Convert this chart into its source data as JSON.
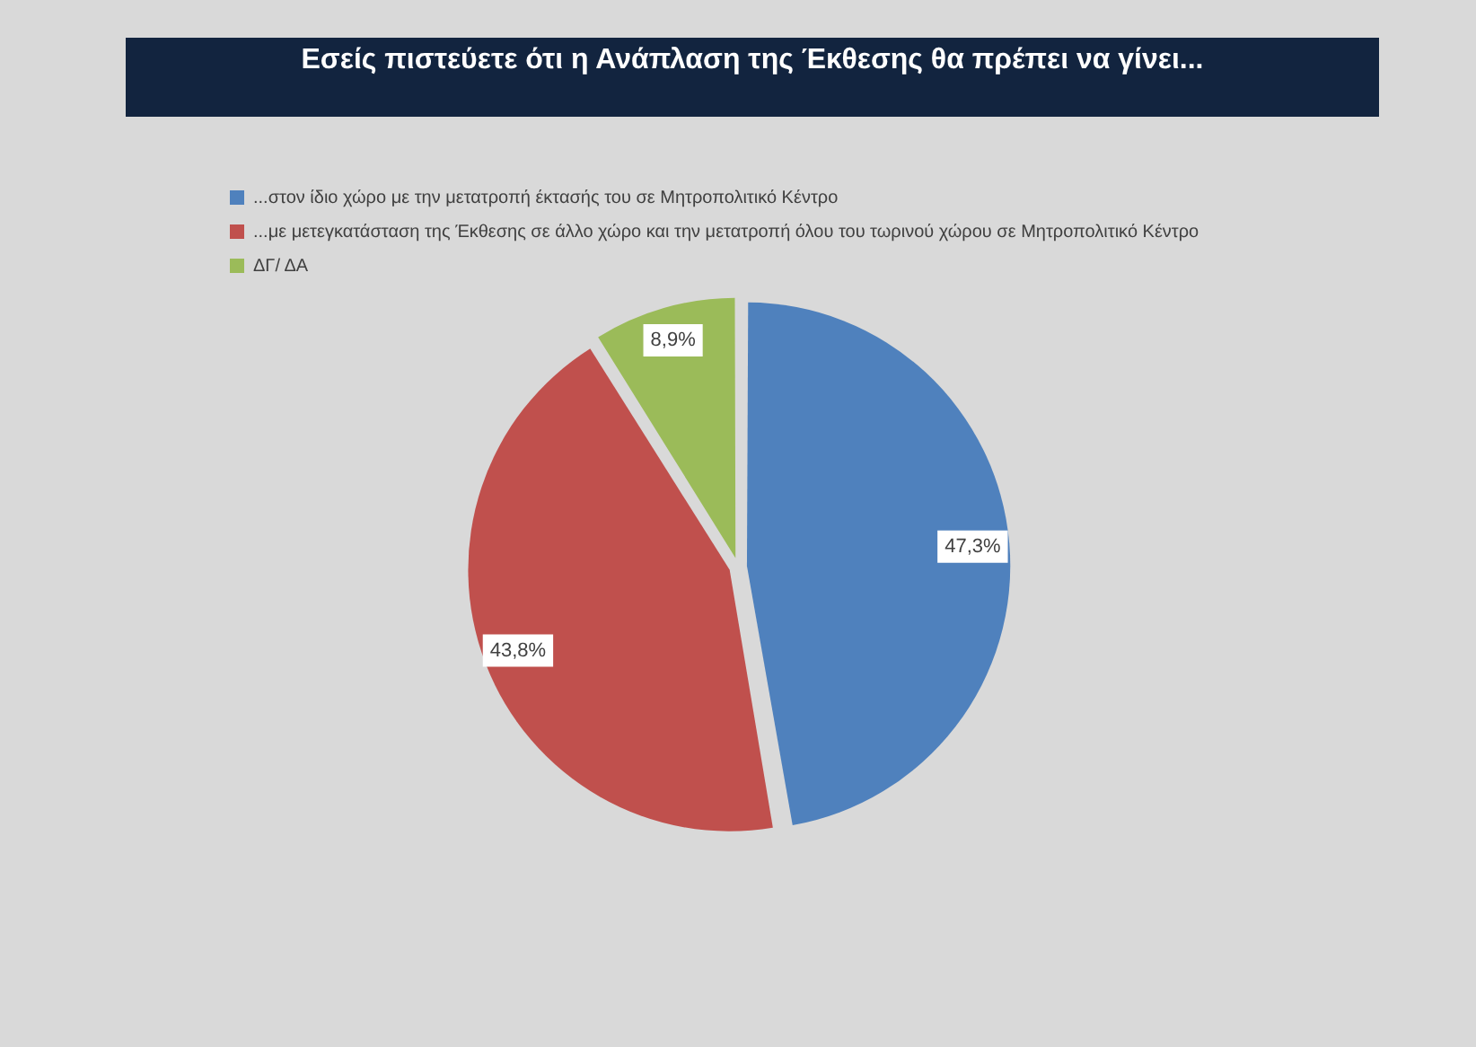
{
  "chart_data": {
    "type": "pie",
    "title": "Εσείς πιστεύετε ότι η Ανάπλαση της Έκθεσης θα πρέπει να γίνει...",
    "categories": [
      "...στον ίδιο χώρο με την μετατροπή έκτασής του σε Μητροπολιτικό Κέντρο",
      "...με μετεγκατάσταση της Έκθεσης σε άλλο χώρο και την μετατροπή όλου του τωρινού χώρου σε Μητροπολιτικό Κέντρο",
      "ΔΓ/ ΔΑ"
    ],
    "values": [
      47.3,
      43.8,
      8.9
    ],
    "colors": [
      "#4f81bd",
      "#c0504d",
      "#9bbb59"
    ],
    "value_labels": [
      "47,3%",
      "43,8%",
      "8,9%"
    ],
    "legend": "top left"
  }
}
